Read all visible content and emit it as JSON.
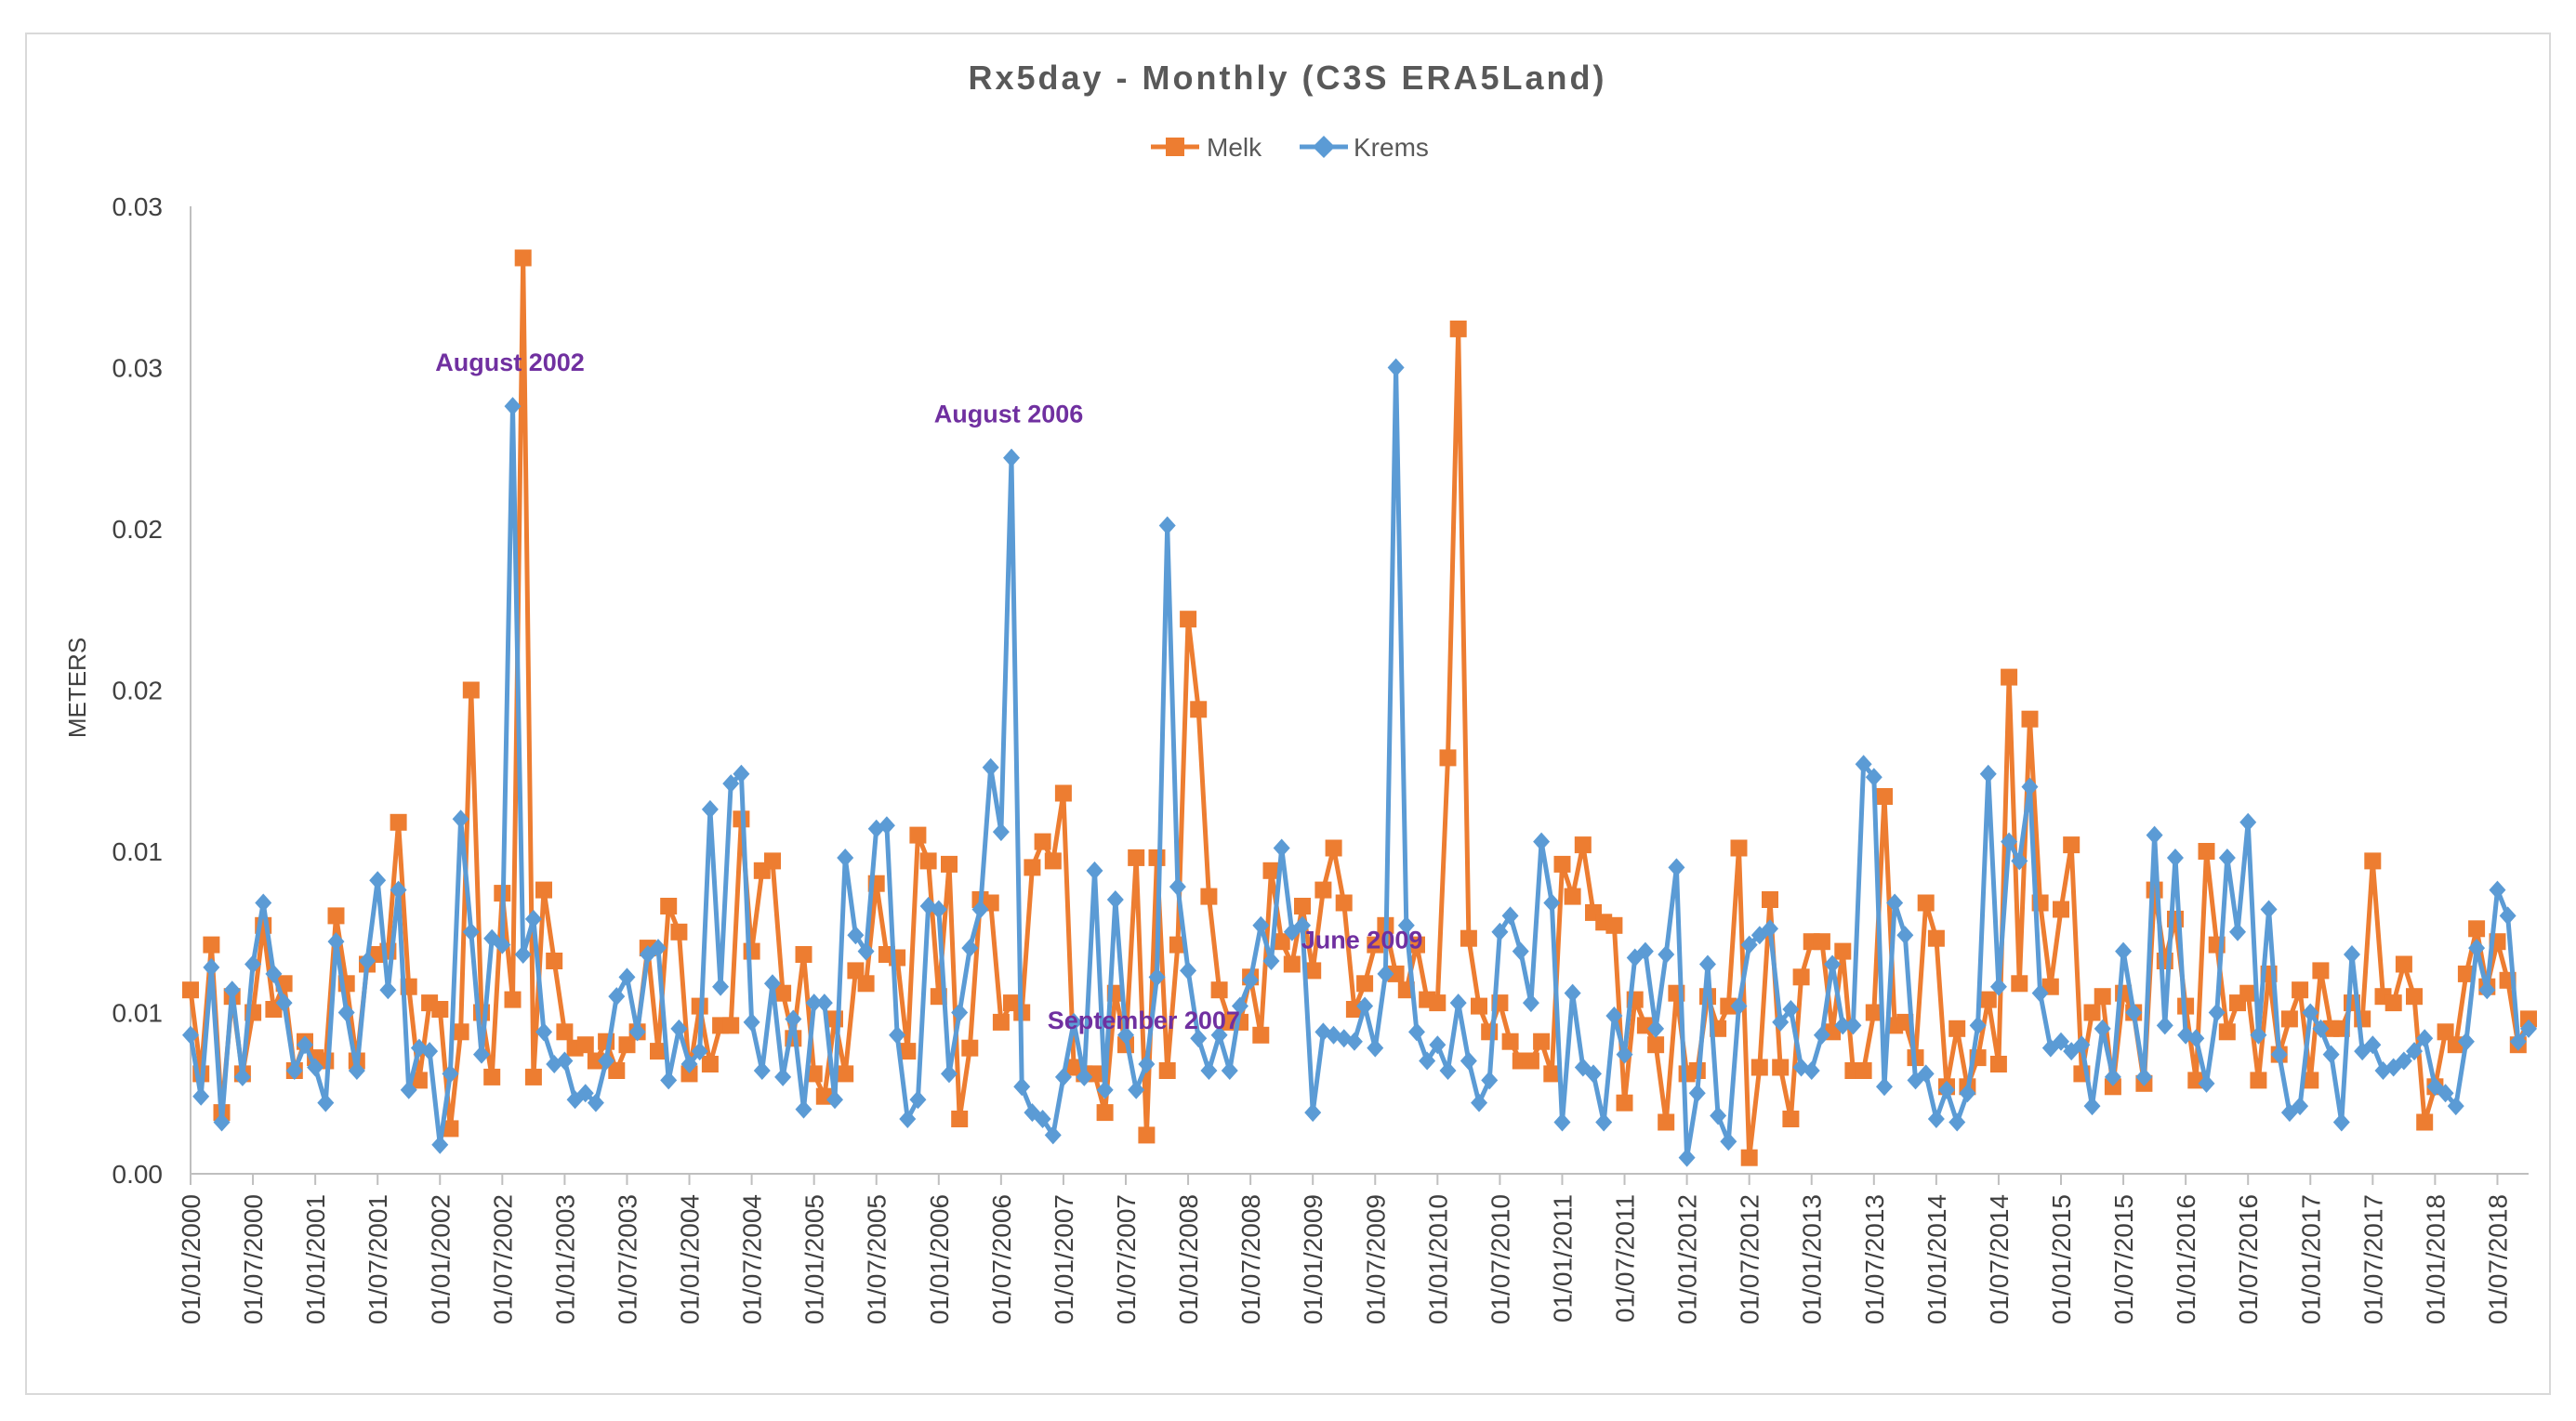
{
  "chart_data": {
    "type": "line",
    "title": "Rx5day - Monthly (C3S ERA5Land)",
    "xlabel": "",
    "ylabel": "METERS",
    "yticks": [
      "0.00",
      "0.01",
      "0.01",
      "0.02",
      "0.02",
      "0.03",
      "0.03"
    ],
    "ylim": [
      0,
      0.03
    ],
    "xtick_labels": [
      "01/01/2000",
      "01/07/2000",
      "01/01/2001",
      "01/07/2001",
      "01/01/2002",
      "01/07/2002",
      "01/01/2003",
      "01/07/2003",
      "01/01/2004",
      "01/07/2004",
      "01/01/2005",
      "01/07/2005",
      "01/01/2006",
      "01/07/2006",
      "01/01/2007",
      "01/07/2007",
      "01/01/2008",
      "01/07/2008",
      "01/01/2009",
      "01/07/2009",
      "01/01/2010",
      "01/07/2010",
      "01/01/2011",
      "01/07/2011",
      "01/01/2012",
      "01/07/2012",
      "01/01/2013",
      "01/07/2013",
      "01/01/2014",
      "01/07/2014",
      "01/01/2015",
      "01/07/2015",
      "01/01/2016",
      "01/07/2016",
      "01/01/2017",
      "01/07/2017",
      "01/01/2018",
      "01/07/2018"
    ],
    "legend_position": "top-center",
    "series": [
      {
        "name": "Melk",
        "color": "#ed7d31",
        "marker": "square",
        "values": [
          0.0057,
          0.0031,
          0.0071,
          0.0019,
          0.0055,
          0.0031,
          0.005,
          0.0077,
          0.0051,
          0.0059,
          0.0032,
          0.0041,
          0.0036,
          0.0035,
          0.008,
          0.0059,
          0.0035,
          0.0065,
          0.0068,
          0.0069,
          0.0109,
          0.0058,
          0.0029,
          0.0053,
          0.0051,
          0.0014,
          0.0044,
          0.015,
          0.005,
          0.003,
          0.0087,
          0.0054,
          0.0284,
          0.003,
          0.0088,
          0.0066,
          0.0044,
          0.0039,
          0.004,
          0.0035,
          0.0041,
          0.0032,
          0.004,
          0.0044,
          0.007,
          0.0038,
          0.0083,
          0.0075,
          0.0031,
          0.0052,
          0.0034,
          0.0046,
          0.0046,
          0.011,
          0.0069,
          0.0094,
          0.0097,
          0.0056,
          0.0042,
          0.0068,
          0.0031,
          0.0024,
          0.0048,
          0.0031,
          0.0063,
          0.0059,
          0.009,
          0.0068,
          0.0067,
          0.0038,
          0.0105,
          0.0097,
          0.0055,
          0.0096,
          0.0017,
          0.0039,
          0.0085,
          0.0084,
          0.0047,
          0.0053,
          0.005,
          0.0095,
          0.0103,
          0.0097,
          0.0118,
          0.0033,
          0.0031,
          0.0031,
          0.0019,
          0.0056,
          0.004,
          0.0098,
          0.0012,
          0.0098,
          0.0032,
          0.0071,
          0.0172,
          0.0144,
          0.0086,
          0.0057,
          0.0047,
          0.0047,
          0.0061,
          0.0043,
          0.0094,
          0.0072,
          0.0065,
          0.0083,
          0.0063,
          0.0088,
          0.0101,
          0.0084,
          0.0051,
          0.0059,
          0.0071,
          0.0077,
          0.0062,
          0.0057,
          0.0071,
          0.0054,
          0.0053,
          0.0129,
          0.0262,
          0.0073,
          0.0052,
          0.0044,
          0.0053,
          0.0041,
          0.0035,
          0.0035,
          0.0041,
          0.0031,
          0.0096,
          0.0086,
          0.0102,
          0.0081,
          0.0078,
          0.0077,
          0.0022,
          0.0054,
          0.0046,
          0.004,
          0.0016,
          0.0056,
          0.0031,
          0.0032,
          0.0055,
          0.0045,
          0.0052,
          0.0101,
          0.0005,
          0.0033,
          0.0085,
          0.0033,
          0.0017,
          0.0061,
          0.0072,
          0.0072,
          0.0044,
          0.0069,
          0.0032,
          0.0032,
          0.005,
          0.0117,
          0.0046,
          0.0047,
          0.0036,
          0.0084,
          0.0073,
          0.0027,
          0.0045,
          0.0027,
          0.0036,
          0.0054,
          0.0034,
          0.0154,
          0.0059,
          0.0141,
          0.0084,
          0.0058,
          0.0082,
          0.0102,
          0.0031,
          0.005,
          0.0055,
          0.0027,
          0.0056,
          0.005,
          0.0028,
          0.0088,
          0.0066,
          0.0079,
          0.0052,
          0.0029,
          0.01,
          0.0071,
          0.0044,
          0.0053,
          0.0056,
          0.0029,
          0.0062,
          0.0037,
          0.0048,
          0.0057,
          0.0029,
          0.0063,
          0.0045,
          0.0045,
          0.0053,
          0.0048,
          0.0097,
          0.0055,
          0.0053,
          0.0065,
          0.0055,
          0.0016,
          0.0027,
          0.0044,
          0.004,
          0.0062,
          0.0076,
          0.0058,
          0.0072,
          0.006,
          0.004,
          0.0048
        ]
      },
      {
        "name": "Krems",
        "color": "#5b9bd5",
        "marker": "diamond",
        "values": [
          0.0043,
          0.0024,
          0.0064,
          0.0016,
          0.0057,
          0.003,
          0.0065,
          0.0084,
          0.0062,
          0.0053,
          0.0032,
          0.004,
          0.0033,
          0.0022,
          0.0072,
          0.005,
          0.0032,
          0.0066,
          0.0091,
          0.0057,
          0.0088,
          0.0026,
          0.0039,
          0.0038,
          0.0009,
          0.0031,
          0.011,
          0.0075,
          0.0037,
          0.0073,
          0.0071,
          0.0238,
          0.0068,
          0.0079,
          0.0044,
          0.0034,
          0.0035,
          0.0023,
          0.0025,
          0.0022,
          0.0035,
          0.0055,
          0.0061,
          0.0044,
          0.0068,
          0.007,
          0.0029,
          0.0045,
          0.0034,
          0.0038,
          0.0113,
          0.0058,
          0.0121,
          0.0124,
          0.0047,
          0.0032,
          0.0059,
          0.003,
          0.0048,
          0.002,
          0.0053,
          0.0053,
          0.0023,
          0.0098,
          0.0074,
          0.0069,
          0.0107,
          0.0108,
          0.0043,
          0.0017,
          0.0023,
          0.0083,
          0.0082,
          0.0031,
          0.005,
          0.007,
          0.0082,
          0.0126,
          0.0106,
          0.0222,
          0.0027,
          0.0019,
          0.0017,
          0.0012,
          0.003,
          0.0047,
          0.003,
          0.0094,
          0.0026,
          0.0085,
          0.0043,
          0.0026,
          0.0034,
          0.0061,
          0.0201,
          0.0089,
          0.0063,
          0.0042,
          0.0032,
          0.0043,
          0.0032,
          0.0052,
          0.006,
          0.0077,
          0.0066,
          0.0101,
          0.0075,
          0.0077,
          0.0019,
          0.0044,
          0.0043,
          0.0042,
          0.0041,
          0.0052,
          0.0039,
          0.0062,
          0.025,
          0.0077,
          0.0044,
          0.0035,
          0.004,
          0.0032,
          0.0053,
          0.0035,
          0.0022,
          0.0029,
          0.0075,
          0.008,
          0.0069,
          0.0053,
          0.0103,
          0.0084,
          0.0016,
          0.0056,
          0.0033,
          0.0031,
          0.0016,
          0.0049,
          0.0037,
          0.0067,
          0.0069,
          0.0045,
          0.0068,
          0.0095,
          0.0005,
          0.0025,
          0.0065,
          0.0018,
          0.001,
          0.0052,
          0.0071,
          0.0074,
          0.0076,
          0.0047,
          0.0051,
          0.0033,
          0.0032,
          0.0043,
          0.0065,
          0.0046,
          0.0046,
          0.0127,
          0.0123,
          0.0027,
          0.0084,
          0.0074,
          0.0029,
          0.0031,
          0.0017,
          0.0026,
          0.0016,
          0.0025,
          0.0046,
          0.0124,
          0.0058,
          0.0103,
          0.0097,
          0.012,
          0.0056,
          0.0039,
          0.0041,
          0.0038,
          0.004,
          0.0021,
          0.0045,
          0.003,
          0.0069,
          0.005,
          0.003,
          0.0105,
          0.0046,
          0.0098,
          0.0043,
          0.0042,
          0.0028,
          0.005,
          0.0098,
          0.0075,
          0.0109,
          0.0043,
          0.0082,
          0.0037,
          0.0019,
          0.0021,
          0.005,
          0.0045,
          0.0037,
          0.0016,
          0.0068,
          0.0038,
          0.004,
          0.0032,
          0.0033,
          0.0035,
          0.0038,
          0.0042,
          0.0027,
          0.0025,
          0.0021,
          0.0041,
          0.007,
          0.0057,
          0.0088,
          0.008,
          0.0041,
          0.0045
        ]
      }
    ],
    "annotations": [
      {
        "text": "August 2002",
        "index": 31
      },
      {
        "text": "August 2006",
        "index": 79
      },
      {
        "text": "September 2007",
        "index": 92
      },
      {
        "text": "June 2009",
        "index": 113
      }
    ]
  }
}
